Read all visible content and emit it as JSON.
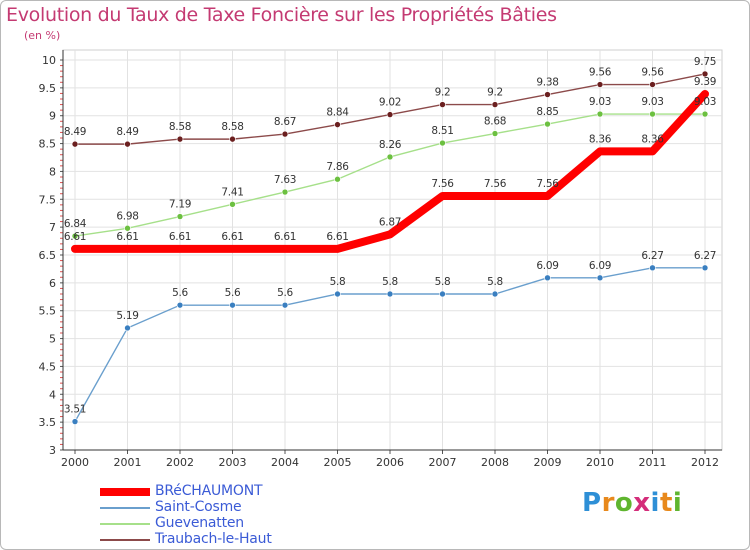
{
  "title": "Evolution du Taux de Taxe Foncière sur les Propriétés Bâties",
  "unit": "(en %)",
  "logo": {
    "text": "Proxiti",
    "letters": [
      "P",
      "r",
      "o",
      "x",
      "i",
      "t",
      "i"
    ],
    "colors": [
      "#2e8fd6",
      "#e8891c",
      "#5fb52f",
      "#d42d7a",
      "#2e8fd6",
      "#e8891c",
      "#5fb52f"
    ]
  },
  "colors": {
    "title": "#c43a72",
    "legend_text": "#3b5bd6",
    "grid": "#e2e2e2",
    "axis": "#333333"
  },
  "chart_data": {
    "type": "line",
    "title": "Evolution du Taux de Taxe Foncière sur les Propriétés Bâties",
    "ylabel": "(en %)",
    "xlabel": "",
    "x": [
      "2000",
      "2001",
      "2002",
      "2003",
      "2004",
      "2005",
      "2006",
      "2007",
      "2008",
      "2009",
      "2010",
      "2011",
      "2012"
    ],
    "ylim": [
      3,
      10
    ],
    "yticks": [
      "3",
      "3.5",
      "4",
      "4.5",
      "5",
      "5.5",
      "6",
      "6.5",
      "7",
      "7.5",
      "8",
      "8.5",
      "9",
      "9.5",
      "10"
    ],
    "grid": true,
    "legend": "bottom-left",
    "series": [
      {
        "name": "BRéCHAUMONT",
        "color": "#ff0000",
        "emphasis": true,
        "values": [
          6.61,
          6.61,
          6.61,
          6.61,
          6.61,
          6.61,
          6.87,
          7.56,
          7.56,
          7.56,
          8.36,
          8.36,
          9.39
        ],
        "labels": [
          "6.61",
          "6.61",
          "6.61",
          "6.61",
          "6.61",
          "6.61",
          "6.87",
          "7.56",
          "7.56",
          "7.56",
          "8.36",
          "8.36",
          "9.39"
        ]
      },
      {
        "name": "Saint-Cosme",
        "color": "#6a9fcd",
        "marker": "#3a7fc0",
        "values": [
          3.51,
          5.19,
          5.6,
          5.6,
          5.6,
          5.8,
          5.8,
          5.8,
          5.8,
          6.09,
          6.09,
          6.27,
          6.27
        ],
        "labels": [
          "3.51",
          "5.19",
          "5.6",
          "5.6",
          "5.6",
          "5.8",
          "5.8",
          "5.8",
          "5.8",
          "6.09",
          "6.09",
          "6.27",
          "6.27"
        ]
      },
      {
        "name": "Guevenatten",
        "color": "#a6e08a",
        "marker": "#6cc040",
        "values": [
          6.84,
          6.98,
          7.19,
          7.41,
          7.63,
          7.86,
          8.26,
          8.51,
          8.68,
          8.85,
          9.03,
          9.03,
          9.03
        ],
        "labels": [
          "6.84",
          "6.98",
          "7.19",
          "7.41",
          "7.63",
          "7.86",
          "8.26",
          "8.51",
          "8.68",
          "8.85",
          "9.03",
          "9.03",
          "9.03"
        ]
      },
      {
        "name": "Traubach-le-Haut",
        "color": "#8c4a4a",
        "marker": "#6b1f1f",
        "values": [
          8.49,
          8.49,
          8.58,
          8.58,
          8.67,
          8.84,
          9.02,
          9.2,
          9.2,
          9.38,
          9.56,
          9.56,
          9.75
        ],
        "labels": [
          "8.49",
          "8.49",
          "8.58",
          "8.58",
          "8.67",
          "8.84",
          "9.02",
          "9.2",
          "9.2",
          "9.38",
          "9.56",
          "9.56",
          "9.75"
        ]
      }
    ]
  }
}
